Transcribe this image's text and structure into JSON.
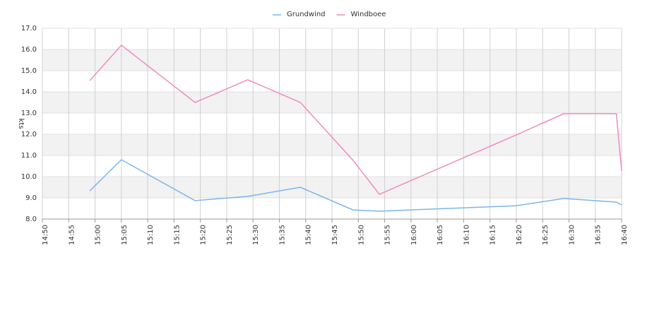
{
  "chart_data": {
    "type": "line",
    "x": [
      "14:59",
      "15:05",
      "15:19",
      "15:29",
      "15:39",
      "15:49",
      "15:54",
      "16:20",
      "16:29",
      "16:39",
      "16:40"
    ],
    "series": [
      {
        "name": "Grundwind",
        "color": "#7cb5ec",
        "values": [
          9.33,
          10.8,
          8.87,
          9.07,
          9.5,
          8.43,
          8.37,
          8.63,
          8.97,
          8.8,
          8.67
        ]
      },
      {
        "name": "Windboee",
        "color": "#f08cc0",
        "values": [
          14.53,
          16.2,
          13.5,
          14.57,
          13.5,
          10.77,
          9.17,
          11.97,
          12.97,
          12.97,
          10.27
        ]
      }
    ],
    "ylabel": "kts",
    "xlim": [
      "14:50",
      "16:40"
    ],
    "xticks": [
      "14:50",
      "14:55",
      "15:00",
      "15:05",
      "15:10",
      "15:15",
      "15:20",
      "15:25",
      "15:30",
      "15:35",
      "15:40",
      "15:45",
      "15:50",
      "15:55",
      "16:00",
      "16:05",
      "16:10",
      "16:15",
      "16:20",
      "16:25",
      "16:30",
      "16:35",
      "16:40"
    ],
    "ylim": [
      8,
      17
    ],
    "yticks": [
      {
        "value": 8,
        "label": "8.0"
      },
      {
        "value": 9,
        "label": "9.0"
      },
      {
        "value": 10,
        "label": "10.0"
      },
      {
        "value": 11,
        "label": "11.0"
      },
      {
        "value": 12,
        "label": "12.0"
      },
      {
        "value": 13,
        "label": "13.0"
      },
      {
        "value": 14,
        "label": "14.0"
      },
      {
        "value": 15,
        "label": "15.0"
      },
      {
        "value": 16,
        "label": "16.0"
      },
      {
        "value": 17,
        "label": "17.0"
      }
    ],
    "grid": true,
    "legend": "top"
  }
}
